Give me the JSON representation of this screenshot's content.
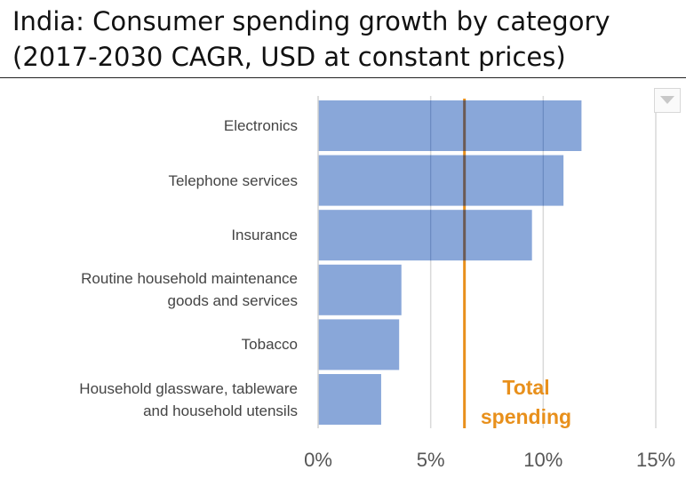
{
  "title": {
    "line1": "India: Consumer spending growth by category",
    "line2": "(2017-2030 CAGR, USD at constant prices)"
  },
  "dropdown_icon": "chevron-down-icon",
  "colors": {
    "bar": "#7f9fd6",
    "reference": "#e8901c",
    "grid": "#d9d9d9"
  },
  "chart_data": {
    "type": "bar",
    "orientation": "horizontal",
    "title": "India: Consumer spending growth by category (2017-2030 CAGR, USD at constant prices)",
    "categories": [
      [
        "Electronics"
      ],
      [
        "Telephone services"
      ],
      [
        "Insurance"
      ],
      [
        "Routine household maintenance",
        "goods and services"
      ],
      [
        "Tobacco"
      ],
      [
        "Household glassware, tableware",
        "and household utensils"
      ]
    ],
    "values": [
      11.7,
      10.9,
      9.5,
      3.7,
      3.6,
      2.8
    ],
    "xlim": [
      0,
      15
    ],
    "xticks": [
      0,
      5,
      10,
      15
    ],
    "xtick_labels": [
      "0%",
      "5%",
      "10%",
      "15%"
    ],
    "grid": true,
    "reference_line": {
      "value": 6.5,
      "label_line1": "Total",
      "label_line2": "spending"
    }
  }
}
